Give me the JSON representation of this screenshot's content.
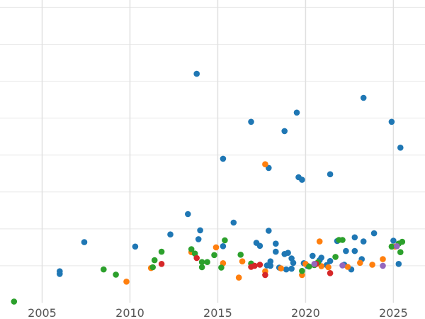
{
  "chart_data": {
    "type": "scatter",
    "title": "",
    "xlabel": "",
    "ylabel": "",
    "xlim": [
      2002.6,
      2026.8
    ],
    "ylim": [
      0,
      8.2
    ],
    "grid": true,
    "x_ticks": [
      2005,
      2010,
      2015,
      2020,
      2025
    ],
    "x_tick_labels": [
      "2005",
      "2010",
      "2015",
      "2020",
      "2025"
    ],
    "y_gridlines": [
      1,
      2,
      3,
      4,
      5,
      6,
      7,
      8
    ],
    "colors": {
      "blue": "#1f77b4",
      "orange": "#ff7f0e",
      "green": "#2ca02c",
      "red": "#d62728",
      "purple": "#9467bd"
    },
    "series": [
      {
        "color": "#1f77b4",
        "points": [
          [
            2006.0,
            0.85
          ],
          [
            2006.0,
            0.78
          ],
          [
            2007.4,
            1.64
          ],
          [
            2010.3,
            1.52
          ],
          [
            2012.3,
            1.85
          ],
          [
            2013.3,
            2.4
          ],
          [
            2013.8,
            6.2
          ],
          [
            2013.9,
            1.72
          ],
          [
            2014.0,
            1.96
          ],
          [
            2015.3,
            3.9
          ],
          [
            2015.3,
            1.53
          ],
          [
            2015.9,
            2.17
          ],
          [
            2016.9,
            4.9
          ],
          [
            2017.2,
            1.62
          ],
          [
            2017.4,
            1.54
          ],
          [
            2017.8,
            1.01
          ],
          [
            2017.9,
            3.65
          ],
          [
            2017.9,
            1.95
          ],
          [
            2018.0,
            1.12
          ],
          [
            2018.0,
            1.0
          ],
          [
            2018.3,
            1.6
          ],
          [
            2018.3,
            1.38
          ],
          [
            2018.5,
            0.95
          ],
          [
            2018.8,
            1.32
          ],
          [
            2018.8,
            4.65
          ],
          [
            2018.9,
            0.9
          ],
          [
            2019.0,
            1.35
          ],
          [
            2019.2,
            1.2
          ],
          [
            2019.2,
            0.92
          ],
          [
            2019.3,
            1.08
          ],
          [
            2019.5,
            5.15
          ],
          [
            2019.6,
            3.4
          ],
          [
            2019.8,
            3.33
          ],
          [
            2019.9,
            1.07
          ],
          [
            2020.1,
            1.0
          ],
          [
            2020.4,
            1.27
          ],
          [
            2020.7,
            1.08
          ],
          [
            2020.8,
            1.15
          ],
          [
            2020.9,
            1.22
          ],
          [
            2021.2,
            1.02
          ],
          [
            2021.4,
            3.48
          ],
          [
            2021.4,
            1.13
          ],
          [
            2021.8,
            1.67
          ],
          [
            2022.2,
            1.03
          ],
          [
            2022.3,
            1.4
          ],
          [
            2022.6,
            0.9
          ],
          [
            2022.8,
            1.4
          ],
          [
            2022.8,
            1.77
          ],
          [
            2023.2,
            1.18
          ],
          [
            2023.3,
            1.66
          ],
          [
            2023.3,
            5.55
          ],
          [
            2023.9,
            1.88
          ],
          [
            2024.9,
            4.9
          ],
          [
            2025.0,
            1.68
          ],
          [
            2025.3,
            1.05
          ],
          [
            2025.4,
            4.2
          ]
        ]
      },
      {
        "color": "#ff7f0e",
        "points": [
          [
            2009.8,
            0.57
          ],
          [
            2011.2,
            0.94
          ],
          [
            2013.5,
            1.37
          ],
          [
            2014.9,
            1.5
          ],
          [
            2015.3,
            1.07
          ],
          [
            2016.2,
            0.68
          ],
          [
            2016.4,
            1.12
          ],
          [
            2017.7,
            3.75
          ],
          [
            2017.7,
            0.85
          ],
          [
            2018.6,
            0.93
          ],
          [
            2019.8,
            0.75
          ],
          [
            2020.0,
            1.05
          ],
          [
            2020.8,
            1.66
          ],
          [
            2020.9,
            0.99
          ],
          [
            2021.3,
            0.96
          ],
          [
            2022.4,
            0.97
          ],
          [
            2023.1,
            1.08
          ],
          [
            2023.8,
            1.03
          ],
          [
            2024.4,
            1.18
          ],
          [
            2025.1,
            1.52
          ]
        ]
      },
      {
        "color": "#2ca02c",
        "points": [
          [
            2003.4,
            0.03
          ],
          [
            2008.5,
            0.9
          ],
          [
            2009.2,
            0.76
          ],
          [
            2011.3,
            0.96
          ],
          [
            2011.4,
            1.15
          ],
          [
            2011.8,
            1.38
          ],
          [
            2013.5,
            1.45
          ],
          [
            2013.7,
            1.33
          ],
          [
            2014.1,
            0.96
          ],
          [
            2014.1,
            1.1
          ],
          [
            2014.4,
            1.1
          ],
          [
            2014.8,
            1.29
          ],
          [
            2015.2,
            0.95
          ],
          [
            2015.4,
            1.69
          ],
          [
            2016.3,
            1.3
          ],
          [
            2016.9,
            1.06
          ],
          [
            2019.8,
            0.86
          ],
          [
            2020.2,
            0.98
          ],
          [
            2020.5,
            1.02
          ],
          [
            2020.7,
            1.09
          ],
          [
            2021.7,
            1.24
          ],
          [
            2021.9,
            1.7
          ],
          [
            2022.1,
            1.7
          ],
          [
            2024.9,
            1.52
          ],
          [
            2025.3,
            1.6
          ],
          [
            2025.4,
            1.37
          ],
          [
            2025.5,
            1.65
          ]
        ]
      },
      {
        "color": "#d62728",
        "points": [
          [
            2011.8,
            1.05
          ],
          [
            2013.8,
            1.21
          ],
          [
            2016.9,
            0.97
          ],
          [
            2017.1,
            1.0
          ],
          [
            2017.4,
            1.03
          ],
          [
            2017.7,
            0.75
          ],
          [
            2020.6,
            1.05
          ],
          [
            2021.4,
            0.8
          ]
        ]
      },
      {
        "color": "#9467bd",
        "points": [
          [
            2020.5,
            1.05
          ],
          [
            2022.1,
            1.01
          ],
          [
            2024.4,
            1.0
          ],
          [
            2025.2,
            1.53
          ]
        ]
      }
    ]
  }
}
